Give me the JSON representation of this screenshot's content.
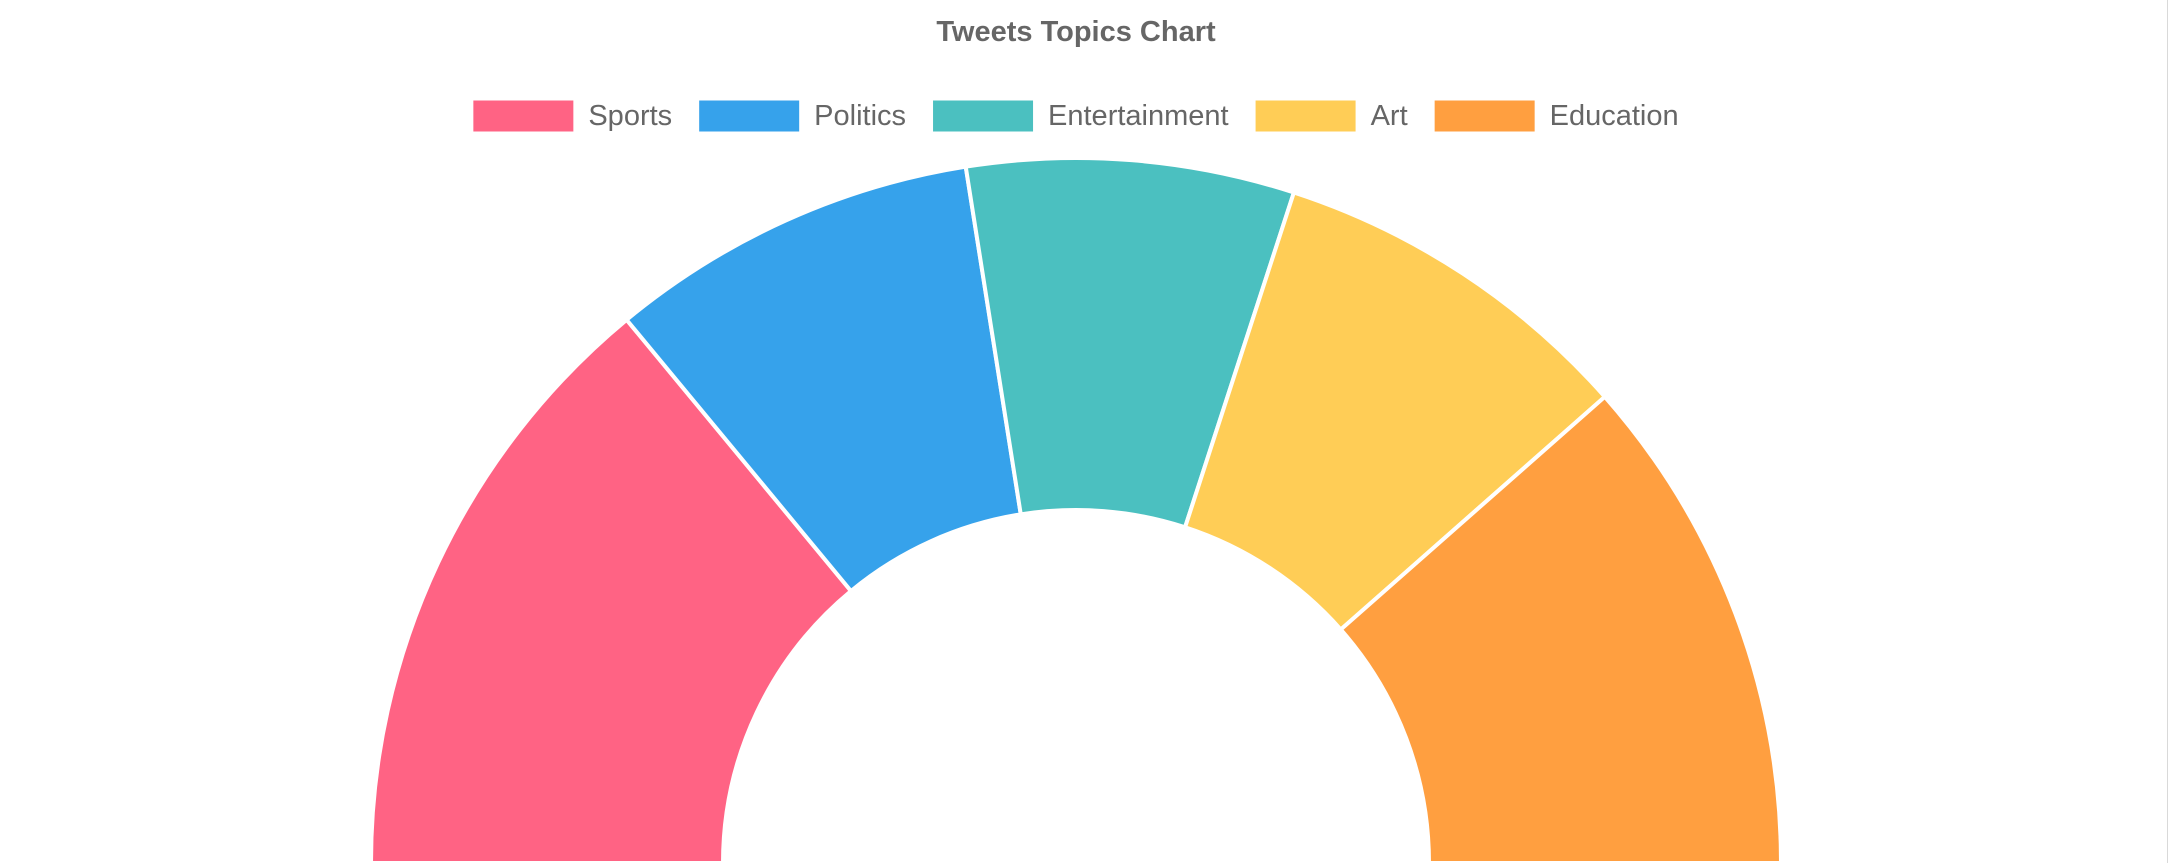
{
  "chart_data": {
    "type": "pie",
    "variant": "half-doughnut",
    "title": "Tweets Topics Chart",
    "legend_position": "top-center",
    "categories": [
      "Sports",
      "Politics",
      "Entertainment",
      "Art",
      "Education"
    ],
    "values": [
      28,
      17,
      15,
      17,
      23
    ],
    "colors": [
      "#ff6384",
      "#36a2eb",
      "#4bc0c0",
      "#ffcd56",
      "#ff9f40"
    ]
  }
}
